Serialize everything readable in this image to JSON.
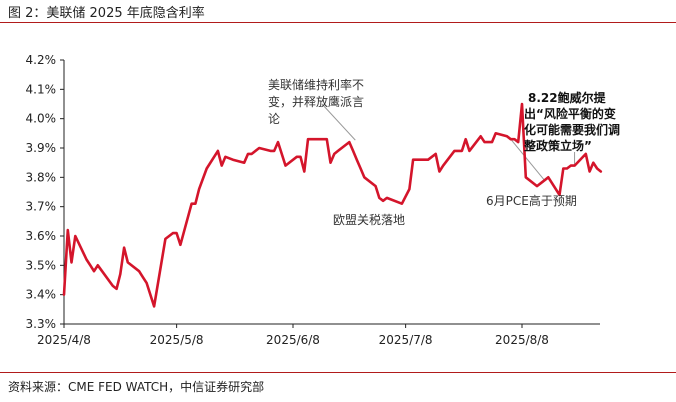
{
  "figure_title": "图 2：美联储 2025 年底隐含利率",
  "source_text": "资料来源：CME FED WATCH，中信证券研究部",
  "colors": {
    "line": "#d4152b",
    "rule": "#b11b1b",
    "annotation_line": "#999999"
  },
  "chart_data": {
    "type": "line",
    "title": "",
    "xlabel": "",
    "ylabel": "",
    "ylim": [
      3.3,
      4.2
    ],
    "y_ticks": [
      "3.3%",
      "3.4%",
      "3.5%",
      "3.6%",
      "3.7%",
      "3.8%",
      "3.9%",
      "4.0%",
      "4.1%",
      "4.2%"
    ],
    "x_ticks": [
      "2025/4/8",
      "2025/5/8",
      "2025/6/8",
      "2025/7/8",
      "2025/8/8"
    ],
    "series": [
      {
        "name": "",
        "unit": "%",
        "points": [
          [
            "2025-04-08",
            3.4
          ],
          [
            "2025-04-09",
            3.62
          ],
          [
            "2025-04-10",
            3.51
          ],
          [
            "2025-04-11",
            3.6
          ],
          [
            "2025-04-14",
            3.52
          ],
          [
            "2025-04-15",
            3.5
          ],
          [
            "2025-04-16",
            3.48
          ],
          [
            "2025-04-17",
            3.5
          ],
          [
            "2025-04-21",
            3.43
          ],
          [
            "2025-04-22",
            3.42
          ],
          [
            "2025-04-23",
            3.47
          ],
          [
            "2025-04-24",
            3.56
          ],
          [
            "2025-04-25",
            3.51
          ],
          [
            "2025-04-28",
            3.48
          ],
          [
            "2025-04-29",
            3.46
          ],
          [
            "2025-04-30",
            3.44
          ],
          [
            "2025-05-02",
            3.36
          ],
          [
            "2025-05-05",
            3.59
          ],
          [
            "2025-05-07",
            3.61
          ],
          [
            "2025-05-08",
            3.61
          ],
          [
            "2025-05-09",
            3.57
          ],
          [
            "2025-05-12",
            3.71
          ],
          [
            "2025-05-13",
            3.71
          ],
          [
            "2025-05-14",
            3.76
          ],
          [
            "2025-05-16",
            3.83
          ],
          [
            "2025-05-19",
            3.89
          ],
          [
            "2025-05-20",
            3.84
          ],
          [
            "2025-05-21",
            3.87
          ],
          [
            "2025-05-23",
            3.86
          ],
          [
            "2025-05-26",
            3.85
          ],
          [
            "2025-05-27",
            3.88
          ],
          [
            "2025-05-28",
            3.88
          ],
          [
            "2025-05-30",
            3.9
          ],
          [
            "2025-06-02",
            3.89
          ],
          [
            "2025-06-03",
            3.89
          ],
          [
            "2025-06-04",
            3.92
          ],
          [
            "2025-06-06",
            3.84
          ],
          [
            "2025-06-09",
            3.87
          ],
          [
            "2025-06-10",
            3.87
          ],
          [
            "2025-06-11",
            3.82
          ],
          [
            "2025-06-12",
            3.93
          ],
          [
            "2025-06-13",
            3.93
          ],
          [
            "2025-06-16",
            3.93
          ],
          [
            "2025-06-17",
            3.93
          ],
          [
            "2025-06-18",
            3.85
          ],
          [
            "2025-06-19",
            3.88
          ],
          [
            "2025-06-20",
            3.89
          ],
          [
            "2025-06-23",
            3.92
          ],
          [
            "2025-06-24",
            3.89
          ],
          [
            "2025-06-25",
            3.86
          ],
          [
            "2025-06-26",
            3.83
          ],
          [
            "2025-06-27",
            3.8
          ],
          [
            "2025-06-30",
            3.77
          ],
          [
            "2025-07-01",
            3.73
          ],
          [
            "2025-07-02",
            3.72
          ],
          [
            "2025-07-03",
            3.73
          ],
          [
            "2025-07-07",
            3.71
          ],
          [
            "2025-07-09",
            3.76
          ],
          [
            "2025-07-10",
            3.86
          ],
          [
            "2025-07-11",
            3.86
          ],
          [
            "2025-07-14",
            3.86
          ],
          [
            "2025-07-15",
            3.87
          ],
          [
            "2025-07-16",
            3.88
          ],
          [
            "2025-07-17",
            3.82
          ],
          [
            "2025-07-18",
            3.84
          ],
          [
            "2025-07-21",
            3.89
          ],
          [
            "2025-07-22",
            3.89
          ],
          [
            "2025-07-23",
            3.89
          ],
          [
            "2025-07-24",
            3.93
          ],
          [
            "2025-07-25",
            3.89
          ],
          [
            "2025-07-28",
            3.94
          ],
          [
            "2025-07-29",
            3.92
          ],
          [
            "2025-07-30",
            3.92
          ],
          [
            "2025-07-31",
            3.92
          ],
          [
            "2025-08-01",
            3.95
          ],
          [
            "2025-08-04",
            3.94
          ],
          [
            "2025-08-05",
            3.93
          ],
          [
            "2025-08-06",
            3.93
          ],
          [
            "2025-08-07",
            3.92
          ],
          [
            "2025-08-08",
            4.05
          ],
          [
            "2025-08-09",
            3.8
          ],
          [
            "2025-08-12",
            3.77
          ],
          [
            "2025-08-13",
            3.78
          ],
          [
            "2025-08-14",
            3.79
          ],
          [
            "2025-08-15",
            3.8
          ],
          [
            "2025-08-18",
            3.74
          ],
          [
            "2025-08-19",
            3.83
          ],
          [
            "2025-08-20",
            3.83
          ],
          [
            "2025-08-21",
            3.84
          ],
          [
            "2025-08-22",
            3.84
          ],
          [
            "2025-08-25",
            3.88
          ],
          [
            "2025-08-26",
            3.82
          ],
          [
            "2025-08-27",
            3.85
          ],
          [
            "2025-08-28",
            3.83
          ],
          [
            "2025-08-29",
            3.82
          ]
        ]
      }
    ],
    "annotations": [
      {
        "id": "fed-hold",
        "lines": [
          "美联储维持利率不",
          "变，并释放鹰派言",
          "论"
        ],
        "bold": false,
        "point_date": "2025-06-23",
        "point_value": 3.92
      },
      {
        "id": "eu-tariff",
        "lines": [
          "欧盟关税落地"
        ],
        "bold": false
      },
      {
        "id": "pce",
        "lines": [
          "6月PCE高于预期"
        ],
        "bold": false,
        "point_date": "2025-08-05",
        "point_value": 3.93,
        "end_date": "2025-08-14",
        "end_value": 3.79
      },
      {
        "id": "powell",
        "lines": [
          "8.22鲍威尔提",
          "出“风险平衡的变",
          "化可能需要我们调",
          "整政策立场”"
        ],
        "bold": true,
        "point_date": "2025-08-22",
        "point_value": 3.84
      }
    ],
    "grid": false,
    "legend": "none"
  }
}
